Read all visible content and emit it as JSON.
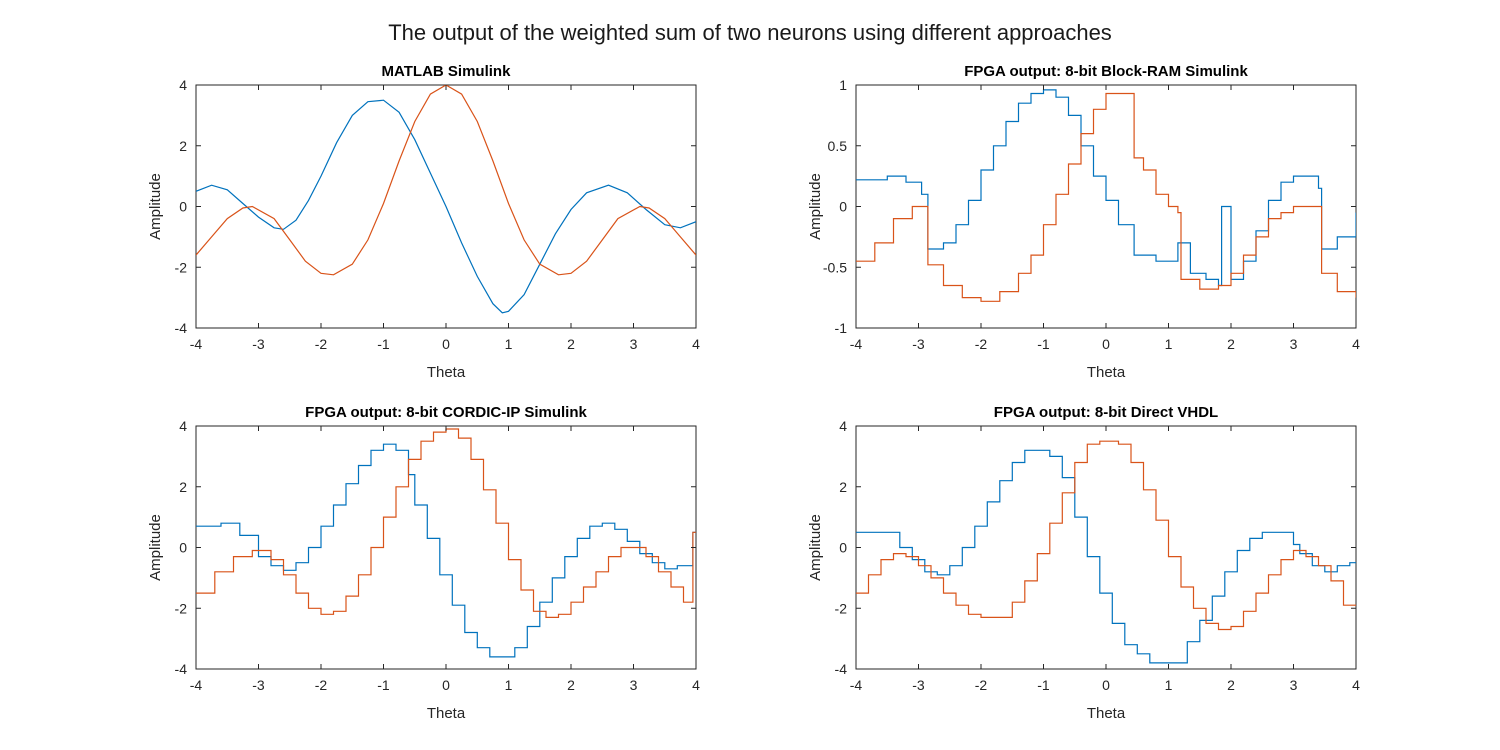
{
  "figure_title": "The output of the weighted sum of two neurons using different approaches",
  "colors": {
    "series1": "#0072BD",
    "series2": "#D95319"
  },
  "chart_data": [
    {
      "type": "line",
      "title": "MATLAB Simulink",
      "xlabel": "Theta",
      "ylabel": "Amplitude",
      "xlim": [
        -4,
        4
      ],
      "ylim": [
        -4,
        4
      ],
      "xticks": [
        -4,
        -3,
        -2,
        -1,
        0,
        1,
        2,
        3,
        4
      ],
      "xtick_labels": [
        "-4",
        "-3",
        "-2",
        "-1",
        "0",
        "1",
        "2",
        "3",
        "4"
      ],
      "yticks": [
        -4,
        -2,
        0,
        2,
        4
      ],
      "ytick_labels": [
        "-4",
        "-2",
        "0",
        "2",
        "4"
      ],
      "series": [
        {
          "x": [
            -4.0,
            -3.75,
            -3.5,
            -3.25,
            -3.0,
            -2.75,
            -2.6,
            -2.4,
            -2.2,
            -2.0,
            -1.75,
            -1.5,
            -1.25,
            -1.0,
            -0.75,
            -0.5,
            -0.25,
            0.0,
            0.25,
            0.5,
            0.75,
            0.9,
            1.0,
            1.25,
            1.5,
            1.75,
            2.0,
            2.25,
            2.6,
            2.9,
            3.2,
            3.5,
            3.75,
            4.0
          ],
          "y": [
            0.5,
            0.7,
            0.55,
            0.1,
            -0.35,
            -0.7,
            -0.75,
            -0.45,
            0.2,
            1.0,
            2.1,
            3.0,
            3.45,
            3.5,
            3.1,
            2.2,
            1.1,
            0.0,
            -1.2,
            -2.3,
            -3.2,
            -3.5,
            -3.45,
            -2.9,
            -1.9,
            -0.9,
            -0.1,
            0.45,
            0.7,
            0.45,
            -0.1,
            -0.6,
            -0.7,
            -0.5
          ]
        },
        {
          "x": [
            -4.0,
            -3.75,
            -3.5,
            -3.25,
            -3.1,
            -2.75,
            -2.5,
            -2.25,
            -2.0,
            -1.8,
            -1.5,
            -1.25,
            -1.0,
            -0.75,
            -0.5,
            -0.25,
            0.0,
            0.25,
            0.5,
            0.75,
            1.0,
            1.25,
            1.5,
            1.8,
            2.0,
            2.25,
            2.5,
            2.75,
            3.1,
            3.25,
            3.5,
            3.75,
            4.0
          ],
          "y": [
            -1.6,
            -1.0,
            -0.4,
            -0.05,
            0.0,
            -0.4,
            -1.1,
            -1.8,
            -2.2,
            -2.25,
            -1.9,
            -1.1,
            0.1,
            1.5,
            2.8,
            3.7,
            4.0,
            3.7,
            2.8,
            1.5,
            0.1,
            -1.1,
            -1.9,
            -2.25,
            -2.2,
            -1.8,
            -1.1,
            -0.4,
            0.0,
            -0.05,
            -0.4,
            -1.0,
            -1.6
          ]
        }
      ]
    },
    {
      "type": "line",
      "title": "FPGA output: 8-bit Block-RAM Simulink",
      "xlabel": "Theta",
      "ylabel": "Amplitude",
      "xlim": [
        -4,
        4
      ],
      "ylim": [
        -1,
        1
      ],
      "xticks": [
        -4,
        -3,
        -2,
        -1,
        0,
        1,
        2,
        3,
        4
      ],
      "xtick_labels": [
        "-4",
        "-3",
        "-2",
        "-1",
        "0",
        "1",
        "2",
        "3",
        "4"
      ],
      "yticks": [
        -1,
        -0.5,
        0,
        0.5,
        1
      ],
      "ytick_labels": [
        "-1",
        "-0.5",
        "0",
        "0.5",
        "1"
      ],
      "series": [
        {
          "step": true,
          "x": [
            -4.0,
            -3.5,
            -3.2,
            -2.95,
            -2.85,
            -2.6,
            -2.4,
            -2.2,
            -2.0,
            -1.8,
            -1.6,
            -1.4,
            -1.2,
            -1.0,
            -0.8,
            -0.6,
            -0.4,
            -0.2,
            0.0,
            0.2,
            0.45,
            0.8,
            1.0,
            1.15,
            1.35,
            1.6,
            1.8,
            1.85,
            2.0,
            2.2,
            2.4,
            2.6,
            2.8,
            3.0,
            3.2,
            3.4,
            3.45,
            3.7,
            4.0
          ],
          "y": [
            0.22,
            0.25,
            0.2,
            0.1,
            -0.35,
            -0.3,
            -0.15,
            0.05,
            0.3,
            0.5,
            0.7,
            0.85,
            0.93,
            0.96,
            0.9,
            0.75,
            0.5,
            0.25,
            0.05,
            -0.15,
            -0.4,
            -0.45,
            -0.45,
            -0.3,
            -0.55,
            -0.6,
            -0.65,
            0.0,
            -0.6,
            -0.45,
            -0.2,
            0.05,
            0.2,
            0.25,
            0.25,
            0.15,
            -0.35,
            -0.25,
            -0.05
          ]
        },
        {
          "step": true,
          "x": [
            -4.0,
            -3.7,
            -3.4,
            -3.1,
            -2.9,
            -2.85,
            -2.6,
            -2.3,
            -2.0,
            -1.7,
            -1.4,
            -1.2,
            -1.0,
            -0.8,
            -0.6,
            -0.4,
            -0.2,
            0.0,
            0.4,
            0.45,
            0.6,
            0.8,
            1.0,
            1.15,
            1.2,
            1.5,
            1.8,
            2.0,
            2.2,
            2.4,
            2.6,
            2.8,
            3.0,
            3.2,
            3.4,
            3.45,
            3.7,
            4.0
          ],
          "y": [
            -0.45,
            -0.3,
            -0.1,
            0.0,
            0.0,
            -0.48,
            -0.65,
            -0.75,
            -0.78,
            -0.7,
            -0.55,
            -0.4,
            -0.15,
            0.1,
            0.35,
            0.6,
            0.8,
            0.93,
            0.93,
            0.4,
            0.3,
            0.1,
            0.0,
            -0.05,
            -0.6,
            -0.68,
            -0.65,
            -0.55,
            -0.4,
            -0.25,
            -0.1,
            -0.05,
            0.0,
            0.0,
            0.0,
            -0.55,
            -0.7,
            -0.75
          ]
        }
      ]
    },
    {
      "type": "line",
      "title": "FPGA output: 8-bit CORDIC-IP Simulink",
      "xlabel": "Theta",
      "ylabel": "Amplitude",
      "xlim": [
        -4,
        4
      ],
      "ylim": [
        -4,
        4
      ],
      "xticks": [
        -4,
        -3,
        -2,
        -1,
        0,
        1,
        2,
        3,
        4
      ],
      "xtick_labels": [
        "-4",
        "-3",
        "-2",
        "-1",
        "0",
        "1",
        "2",
        "3",
        "4"
      ],
      "yticks": [
        -4,
        -2,
        0,
        2,
        4
      ],
      "ytick_labels": [
        "-4",
        "-2",
        "0",
        "2",
        "4"
      ],
      "series": [
        {
          "step": true,
          "x": [
            -4.0,
            -3.6,
            -3.3,
            -3.0,
            -2.8,
            -2.6,
            -2.4,
            -2.2,
            -2.0,
            -1.8,
            -1.6,
            -1.4,
            -1.2,
            -1.0,
            -0.8,
            -0.6,
            -0.5,
            -0.3,
            -0.1,
            0.1,
            0.3,
            0.5,
            0.7,
            0.9,
            1.1,
            1.3,
            1.5,
            1.7,
            1.9,
            2.1,
            2.3,
            2.5,
            2.7,
            2.9,
            3.1,
            3.3,
            3.5,
            3.7,
            3.95
          ],
          "y": [
            0.7,
            0.8,
            0.4,
            -0.3,
            -0.6,
            -0.75,
            -0.5,
            0.0,
            0.7,
            1.4,
            2.1,
            2.7,
            3.2,
            3.4,
            3.2,
            2.4,
            1.4,
            0.3,
            -0.9,
            -1.9,
            -2.8,
            -3.3,
            -3.6,
            -3.6,
            -3.3,
            -2.6,
            -1.8,
            -1.0,
            -0.3,
            0.3,
            0.7,
            0.8,
            0.6,
            0.2,
            -0.2,
            -0.5,
            -0.7,
            -0.6,
            0.5
          ]
        },
        {
          "step": true,
          "x": [
            -4.0,
            -3.7,
            -3.4,
            -3.1,
            -2.8,
            -2.6,
            -2.4,
            -2.2,
            -2.0,
            -1.8,
            -1.6,
            -1.4,
            -1.2,
            -1.0,
            -0.8,
            -0.6,
            -0.4,
            -0.2,
            0.0,
            0.2,
            0.4,
            0.6,
            0.8,
            1.0,
            1.2,
            1.4,
            1.6,
            1.8,
            2.0,
            2.2,
            2.4,
            2.6,
            2.8,
            3.0,
            3.2,
            3.4,
            3.6,
            3.8,
            3.95
          ],
          "y": [
            -1.5,
            -0.8,
            -0.3,
            -0.1,
            -0.4,
            -0.9,
            -1.5,
            -2.0,
            -2.2,
            -2.1,
            -1.6,
            -0.9,
            0.0,
            1.0,
            2.0,
            2.9,
            3.5,
            3.8,
            3.9,
            3.6,
            2.9,
            1.9,
            0.8,
            -0.4,
            -1.4,
            -2.1,
            -2.3,
            -2.2,
            -1.8,
            -1.3,
            -0.8,
            -0.3,
            0.0,
            0.0,
            -0.3,
            -0.8,
            -1.3,
            -1.8,
            0.5
          ]
        }
      ]
    },
    {
      "type": "line",
      "title": "FPGA output: 8-bit Direct VHDL",
      "xlabel": "Theta",
      "ylabel": "Amplitude",
      "xlim": [
        -4,
        4
      ],
      "ylim": [
        -4,
        4
      ],
      "xticks": [
        -4,
        -3,
        -2,
        -1,
        0,
        1,
        2,
        3,
        4
      ],
      "xtick_labels": [
        "-4",
        "-3",
        "-2",
        "-1",
        "0",
        "1",
        "2",
        "3",
        "4"
      ],
      "yticks": [
        -4,
        -2,
        0,
        2,
        4
      ],
      "ytick_labels": [
        "-4",
        "-2",
        "0",
        "2",
        "4"
      ],
      "series": [
        {
          "step": true,
          "x": [
            -4.0,
            -3.5,
            -3.3,
            -3.1,
            -2.9,
            -2.7,
            -2.5,
            -2.3,
            -2.1,
            -1.9,
            -1.7,
            -1.5,
            -1.3,
            -1.1,
            -0.9,
            -0.7,
            -0.5,
            -0.3,
            -0.1,
            0.1,
            0.3,
            0.5,
            0.7,
            1.1,
            1.3,
            1.5,
            1.7,
            1.9,
            2.1,
            2.3,
            2.5,
            2.7,
            3.0,
            3.1,
            3.3,
            3.5,
            3.7,
            3.9
          ],
          "y": [
            0.5,
            0.5,
            0.0,
            -0.4,
            -0.8,
            -0.9,
            -0.6,
            0.0,
            0.7,
            1.5,
            2.2,
            2.8,
            3.2,
            3.2,
            3.0,
            2.3,
            1.0,
            -0.3,
            -1.5,
            -2.5,
            -3.2,
            -3.5,
            -3.8,
            -3.8,
            -3.1,
            -2.4,
            -1.6,
            -0.8,
            -0.1,
            0.3,
            0.5,
            0.5,
            0.1,
            -0.2,
            -0.6,
            -0.8,
            -0.6,
            -0.5
          ]
        },
        {
          "step": true,
          "x": [
            -4.0,
            -3.8,
            -3.6,
            -3.4,
            -3.2,
            -3.0,
            -2.8,
            -2.6,
            -2.4,
            -2.2,
            -2.0,
            -1.8,
            -1.5,
            -1.3,
            -1.1,
            -0.9,
            -0.7,
            -0.5,
            -0.3,
            -0.1,
            0.2,
            0.4,
            0.6,
            0.8,
            1.0,
            1.2,
            1.4,
            1.6,
            1.8,
            2.0,
            2.2,
            2.4,
            2.6,
            2.8,
            3.0,
            3.2,
            3.4,
            3.6,
            3.8
          ],
          "y": [
            -1.5,
            -0.9,
            -0.4,
            -0.2,
            -0.3,
            -0.6,
            -1.0,
            -1.5,
            -1.9,
            -2.2,
            -2.3,
            -2.3,
            -1.8,
            -1.1,
            -0.2,
            0.8,
            1.8,
            2.8,
            3.4,
            3.5,
            3.4,
            2.8,
            1.9,
            0.9,
            -0.3,
            -1.3,
            -2.0,
            -2.5,
            -2.7,
            -2.6,
            -2.1,
            -1.5,
            -0.9,
            -0.4,
            -0.1,
            -0.3,
            -0.6,
            -1.1,
            -1.9
          ]
        }
      ]
    }
  ]
}
